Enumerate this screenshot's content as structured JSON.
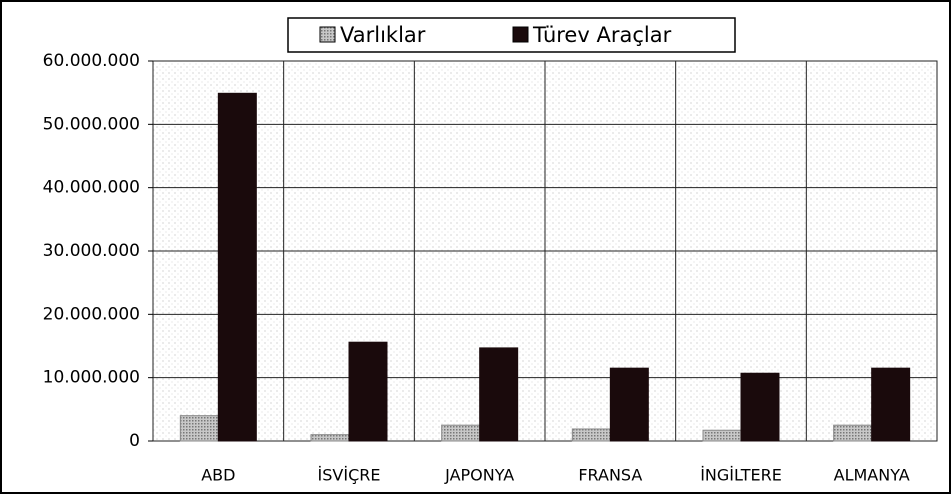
{
  "chart_data": {
    "type": "bar",
    "categories": [
      "ABD",
      "İSVİÇRE",
      "JAPONYA",
      "FRANSA",
      "İNGİLTERE",
      "ALMANYA"
    ],
    "series": [
      {
        "name": "Varlıklar",
        "color": "#a8a8a8",
        "values": [
          4000000,
          1000000,
          2500000,
          1900000,
          1700000,
          2500000
        ]
      },
      {
        "name": "Türev Araçlar",
        "color": "#1a0a0c",
        "values": [
          54900000,
          15600000,
          14700000,
          11500000,
          10700000,
          11500000
        ]
      }
    ],
    "ylim": [
      0,
      60000000
    ],
    "yticks": [
      0,
      {
        "value": 10000000,
        "label": "10.000.000"
      },
      {
        "value": 20000000,
        "label": "20.000.000"
      },
      {
        "value": 30000000,
        "label": "30.000.000"
      },
      {
        "value": 40000000,
        "label": "40.000.000"
      },
      {
        "value": 50000000,
        "label": "50.000.000"
      },
      {
        "value": 60000000,
        "label": "60.000.000"
      }
    ],
    "grid": true,
    "legend": "top"
  }
}
